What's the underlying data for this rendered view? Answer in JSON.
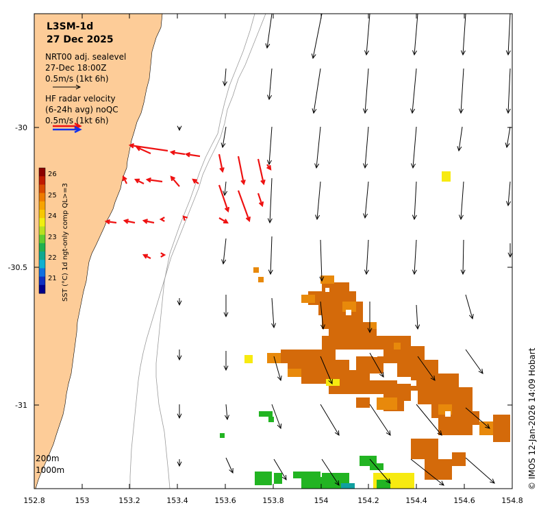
{
  "product": "L3SM-1d",
  "date": "27 Dec 2025",
  "sealevel": {
    "label_line1": "NRT00 adj. sealevel",
    "label_line2": "27-Dec 18:00Z",
    "scale_label": "0.5m/s (1kt 6h)"
  },
  "radar": {
    "label_line1": "HF radar velocity",
    "label_line2": "(6-24h avg) noQC",
    "scale_label": "0.5m/s (1kt 6h)"
  },
  "colorbar": {
    "title": "SST (°C) 1d ngt-only comp QL>=3",
    "ticks": [
      "26",
      "25",
      "24",
      "23",
      "22",
      "21"
    ]
  },
  "axes": {
    "x_ticks": [
      "152.8",
      "153",
      "153.2",
      "153.4",
      "153.6",
      "153.8",
      "154",
      "154.2",
      "154.4",
      "154.6",
      "154.8"
    ],
    "y_ticks": [
      "-30",
      "-30.5",
      "-31"
    ]
  },
  "isobaths": {
    "label_200": "200m",
    "label_1000": "1000m"
  },
  "credit": "© IMOS 12-Jan-2026 14:09 Hobart",
  "colors": {
    "land": "#fdcc98",
    "radar_arrow": "#ee1111",
    "sst_warm": "#d46a0a",
    "sst_orange": "#e8890b",
    "sst_yellow": "#f7ea10",
    "sst_green": "#22b422",
    "sst_cyan": "#10a0a0"
  }
}
